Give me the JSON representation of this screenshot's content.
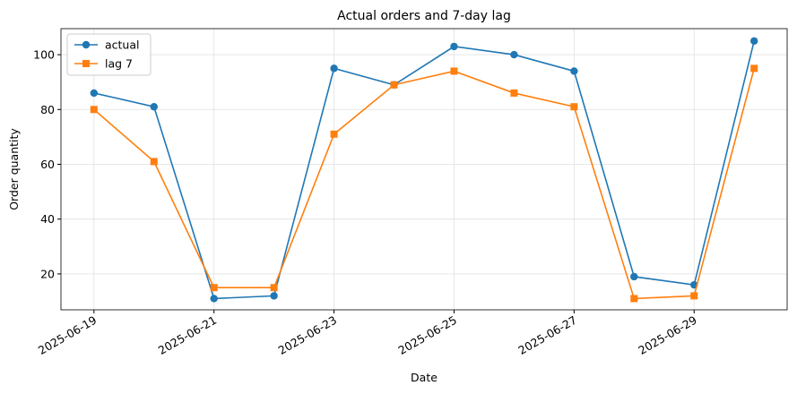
{
  "chart_data": {
    "type": "line",
    "title": "Actual orders and 7-day lag",
    "xlabel": "Date",
    "ylabel": "Order quantity",
    "x": [
      "2025-06-19",
      "2025-06-20",
      "2025-06-21",
      "2025-06-22",
      "2025-06-23",
      "2025-06-24",
      "2025-06-25",
      "2025-06-26",
      "2025-06-27",
      "2025-06-28",
      "2025-06-29",
      "2025-06-30"
    ],
    "series": [
      {
        "name": "actual",
        "color": "#1f77b4",
        "marker": "o",
        "values": [
          86,
          81,
          11,
          12,
          95,
          89,
          103,
          100,
          94,
          19,
          16,
          105
        ]
      },
      {
        "name": "lag 7",
        "color": "#ff7f0e",
        "marker": "s",
        "values": [
          80,
          61,
          15,
          15,
          71,
          89,
          94,
          86,
          81,
          11,
          12,
          95
        ]
      }
    ],
    "xlim": [
      "2025-06-18T10:48",
      "2025-06-30T13:12"
    ],
    "xticks": [
      "2025-06-19",
      "2025-06-21",
      "2025-06-23",
      "2025-06-25",
      "2025-06-27",
      "2025-06-29"
    ],
    "ylim": [
      6.9,
      109.5
    ],
    "yticks": [
      20,
      40,
      60,
      80,
      100
    ],
    "grid": true,
    "legend": "upper left"
  }
}
